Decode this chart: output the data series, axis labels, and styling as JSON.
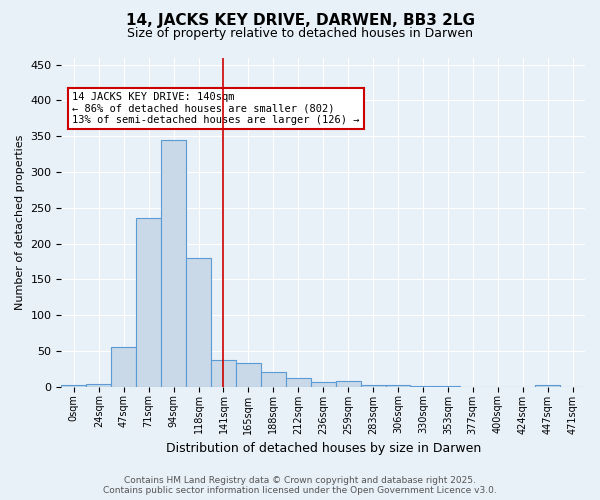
{
  "title": "14, JACKS KEY DRIVE, DARWEN, BB3 2LG",
  "subtitle": "Size of property relative to detached houses in Darwen",
  "xlabel": "Distribution of detached houses by size in Darwen",
  "ylabel": "Number of detached properties",
  "bin_labels": [
    "0sqm",
    "24sqm",
    "47sqm",
    "71sqm",
    "94sqm",
    "118sqm",
    "141sqm",
    "165sqm",
    "188sqm",
    "212sqm",
    "236sqm",
    "259sqm",
    "283sqm",
    "306sqm",
    "330sqm",
    "353sqm",
    "377sqm",
    "400sqm",
    "424sqm",
    "447sqm",
    "471sqm"
  ],
  "bin_values": [
    2,
    4,
    55,
    235,
    345,
    180,
    37,
    33,
    20,
    12,
    6,
    8,
    3,
    2,
    1,
    1,
    0,
    0,
    0,
    2,
    0
  ],
  "bar_color": "#c9d9e8",
  "bar_edge_color": "#5b9bd5",
  "red_line_x": 6,
  "annotation_text": "14 JACKS KEY DRIVE: 140sqm\n← 86% of detached houses are smaller (802)\n13% of semi-detached houses are larger (126) →",
  "annotation_box_color": "#ffffff",
  "annotation_border_color": "#cc0000",
  "ylim": [
    0,
    460
  ],
  "background_color": "#e8f0f8",
  "grid_color": "#ffffff",
  "footer_text": "Contains HM Land Registry data © Crown copyright and database right 2025.\nContains public sector information licensed under the Open Government Licence v3.0."
}
